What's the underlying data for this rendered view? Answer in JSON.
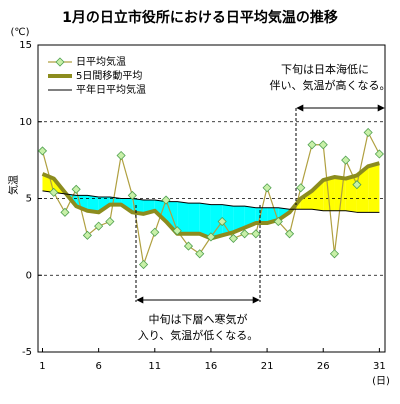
{
  "chart_data": {
    "type": "line",
    "title": "1月の日立市役所における日平均気温の推移",
    "y_unit": "(℃)",
    "y_label": "気温",
    "x_unit": "(日)",
    "x": [
      1,
      2,
      3,
      4,
      5,
      6,
      7,
      8,
      9,
      10,
      11,
      12,
      13,
      14,
      15,
      16,
      17,
      18,
      19,
      20,
      21,
      22,
      23,
      24,
      25,
      26,
      27,
      28,
      29,
      30,
      31
    ],
    "series": [
      {
        "name": "日平均気温",
        "color": "#b0a040",
        "marker_color": "#c8f0a8",
        "values": [
          8.1,
          5.4,
          4.1,
          5.6,
          2.6,
          3.2,
          3.5,
          7.8,
          5.2,
          0.7,
          2.8,
          4.9,
          2.9,
          1.9,
          1.4,
          2.5,
          3.5,
          2.4,
          2.7,
          2.7,
          5.7,
          3.5,
          2.7,
          5.7,
          8.5,
          8.5,
          1.4,
          7.5,
          5.9,
          9.3,
          7.9
        ]
      },
      {
        "name": "5日間移動平均",
        "color": "#8c8c1e",
        "values": [
          6.6,
          6.3,
          5.4,
          4.5,
          4.2,
          4.1,
          4.6,
          4.6,
          4.1,
          4.0,
          4.2,
          3.5,
          2.7,
          2.7,
          2.7,
          2.4,
          2.6,
          2.8,
          3.1,
          3.4,
          3.4,
          3.6,
          4.1,
          5.0,
          5.5,
          6.2,
          6.4,
          6.3,
          6.5,
          7.1,
          7.3
        ]
      },
      {
        "name": "平年日平均気温",
        "color": "#000000",
        "values": [
          5.5,
          5.4,
          5.3,
          5.2,
          5.2,
          5.1,
          5.1,
          5.0,
          5.0,
          4.9,
          4.9,
          4.8,
          4.8,
          4.7,
          4.7,
          4.6,
          4.6,
          4.5,
          4.5,
          4.4,
          4.4,
          4.4,
          4.3,
          4.3,
          4.3,
          4.2,
          4.2,
          4.2,
          4.1,
          4.1,
          4.1
        ]
      }
    ],
    "fill_colors": {
      "below": "#00ffff",
      "above": "#ffff00"
    },
    "xlim": [
      0.6,
      31.5
    ],
    "xticks": [
      1,
      6,
      11,
      16,
      21,
      26,
      31
    ],
    "ylim": [
      -5,
      15
    ],
    "yticks": [
      -5,
      0,
      5,
      10,
      15
    ],
    "grid_values": [
      0,
      5,
      10
    ],
    "annotations": [
      {
        "lines": [
          "下旬は日本海低に",
          "伴い、気温が高くなる。"
        ]
      },
      {
        "lines": [
          "中旬は下層へ寒気が",
          "入り、気温が低くなる。"
        ]
      }
    ]
  }
}
